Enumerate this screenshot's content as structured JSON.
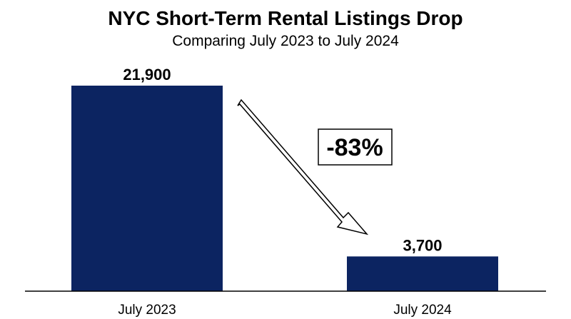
{
  "chart_data": {
    "type": "bar",
    "title": "NYC Short-Term Rental Listings Drop",
    "subtitle": "Comparing July 2023 to July 2024",
    "categories": [
      "July 2023",
      "July 2024"
    ],
    "values": [
      21900,
      3700
    ],
    "value_labels": [
      "21,900",
      "3,700"
    ],
    "annotation": "-83%",
    "xlabel": "",
    "ylabel": "",
    "ylim": [
      0,
      21900
    ],
    "grid": false,
    "legend": "none",
    "bar_color": "#0c2461"
  }
}
